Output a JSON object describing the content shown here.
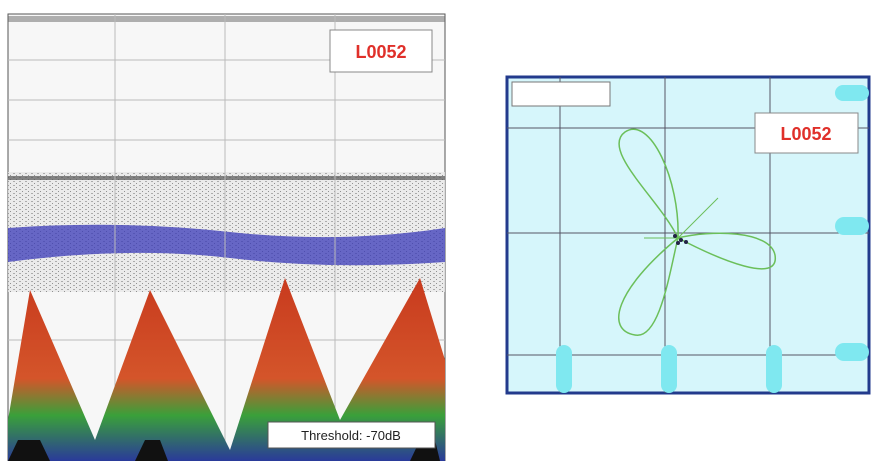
{
  "left_panel": {
    "label": "L0052",
    "threshold": "Threshold: -70dB"
  },
  "right_panel": {
    "label": "L0052"
  }
}
